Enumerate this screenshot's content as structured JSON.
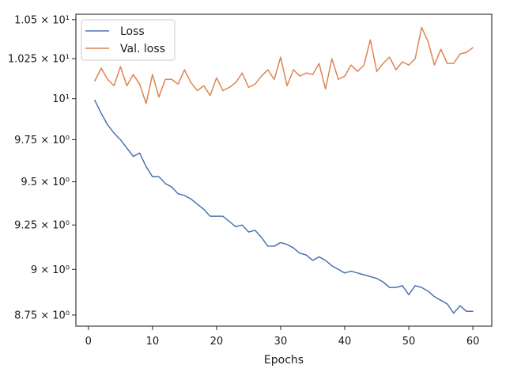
{
  "chart_data": {
    "type": "line",
    "title": "",
    "xlabel": "Epochs",
    "ylabel": "",
    "xlim": [
      -1.95,
      62.95
    ],
    "ylim": [
      8.69,
      10.535
    ],
    "yscale": "log",
    "grid": false,
    "legend_position": "top-left",
    "x_ticks": [
      {
        "value": 0,
        "label": "0"
      },
      {
        "value": 10,
        "label": "10"
      },
      {
        "value": 20,
        "label": "20"
      },
      {
        "value": 30,
        "label": "30"
      },
      {
        "value": 40,
        "label": "40"
      },
      {
        "value": 50,
        "label": "50"
      },
      {
        "value": 60,
        "label": "60"
      }
    ],
    "y_ticks": [
      {
        "value": 8.75,
        "label": "8.75 × 10⁰"
      },
      {
        "value": 9.0,
        "label": "9 × 10⁰"
      },
      {
        "value": 9.25,
        "label": "9.25 × 10⁰"
      },
      {
        "value": 9.5,
        "label": "9.5 × 10⁰"
      },
      {
        "value": 9.75,
        "label": "9.75 × 10⁰"
      },
      {
        "value": 10.0,
        "label": "10¹"
      },
      {
        "value": 10.25,
        "label": "1.025 × 10¹"
      },
      {
        "value": 10.5,
        "label": "1.05 × 10¹"
      }
    ],
    "x": [
      1,
      2,
      3,
      4,
      5,
      6,
      7,
      8,
      9,
      10,
      11,
      12,
      13,
      14,
      15,
      16,
      17,
      18,
      19,
      20,
      21,
      22,
      23,
      24,
      25,
      26,
      27,
      28,
      29,
      30,
      31,
      32,
      33,
      34,
      35,
      36,
      37,
      38,
      39,
      40,
      41,
      42,
      43,
      44,
      45,
      46,
      47,
      48,
      49,
      50,
      51,
      52,
      53,
      54,
      55,
      56,
      57,
      58,
      59,
      60
    ],
    "series": [
      {
        "name": "Loss",
        "color": "#4c72b0",
        "values": [
          9.99,
          9.91,
          9.84,
          9.79,
          9.75,
          9.7,
          9.65,
          9.67,
          9.59,
          9.53,
          9.53,
          9.49,
          9.47,
          9.43,
          9.42,
          9.4,
          9.37,
          9.34,
          9.3,
          9.3,
          9.3,
          9.27,
          9.24,
          9.25,
          9.21,
          9.22,
          9.18,
          9.13,
          9.13,
          9.15,
          9.14,
          9.12,
          9.09,
          9.08,
          9.05,
          9.07,
          9.05,
          9.02,
          9.0,
          8.98,
          8.99,
          8.98,
          8.97,
          8.96,
          8.95,
          8.93,
          8.9,
          8.9,
          8.91,
          8.86,
          8.91,
          8.9,
          8.88,
          8.85,
          8.83,
          8.81,
          8.76,
          8.8,
          8.77,
          8.77
        ]
      },
      {
        "name": "Val. loss",
        "color": "#dd8452",
        "values": [
          10.11,
          10.19,
          10.12,
          10.08,
          10.2,
          10.08,
          10.15,
          10.09,
          9.97,
          10.15,
          10.01,
          10.12,
          10.12,
          10.09,
          10.18,
          10.1,
          10.05,
          10.08,
          10.02,
          10.13,
          10.05,
          10.07,
          10.1,
          10.16,
          10.07,
          10.09,
          10.14,
          10.18,
          10.12,
          10.26,
          10.08,
          10.18,
          10.14,
          10.16,
          10.15,
          10.22,
          10.06,
          10.25,
          10.12,
          10.14,
          10.21,
          10.17,
          10.21,
          10.37,
          10.17,
          10.22,
          10.26,
          10.18,
          10.23,
          10.21,
          10.25,
          10.45,
          10.36,
          10.21,
          10.31,
          10.22,
          10.22,
          10.28,
          10.29,
          10.32
        ]
      }
    ]
  }
}
